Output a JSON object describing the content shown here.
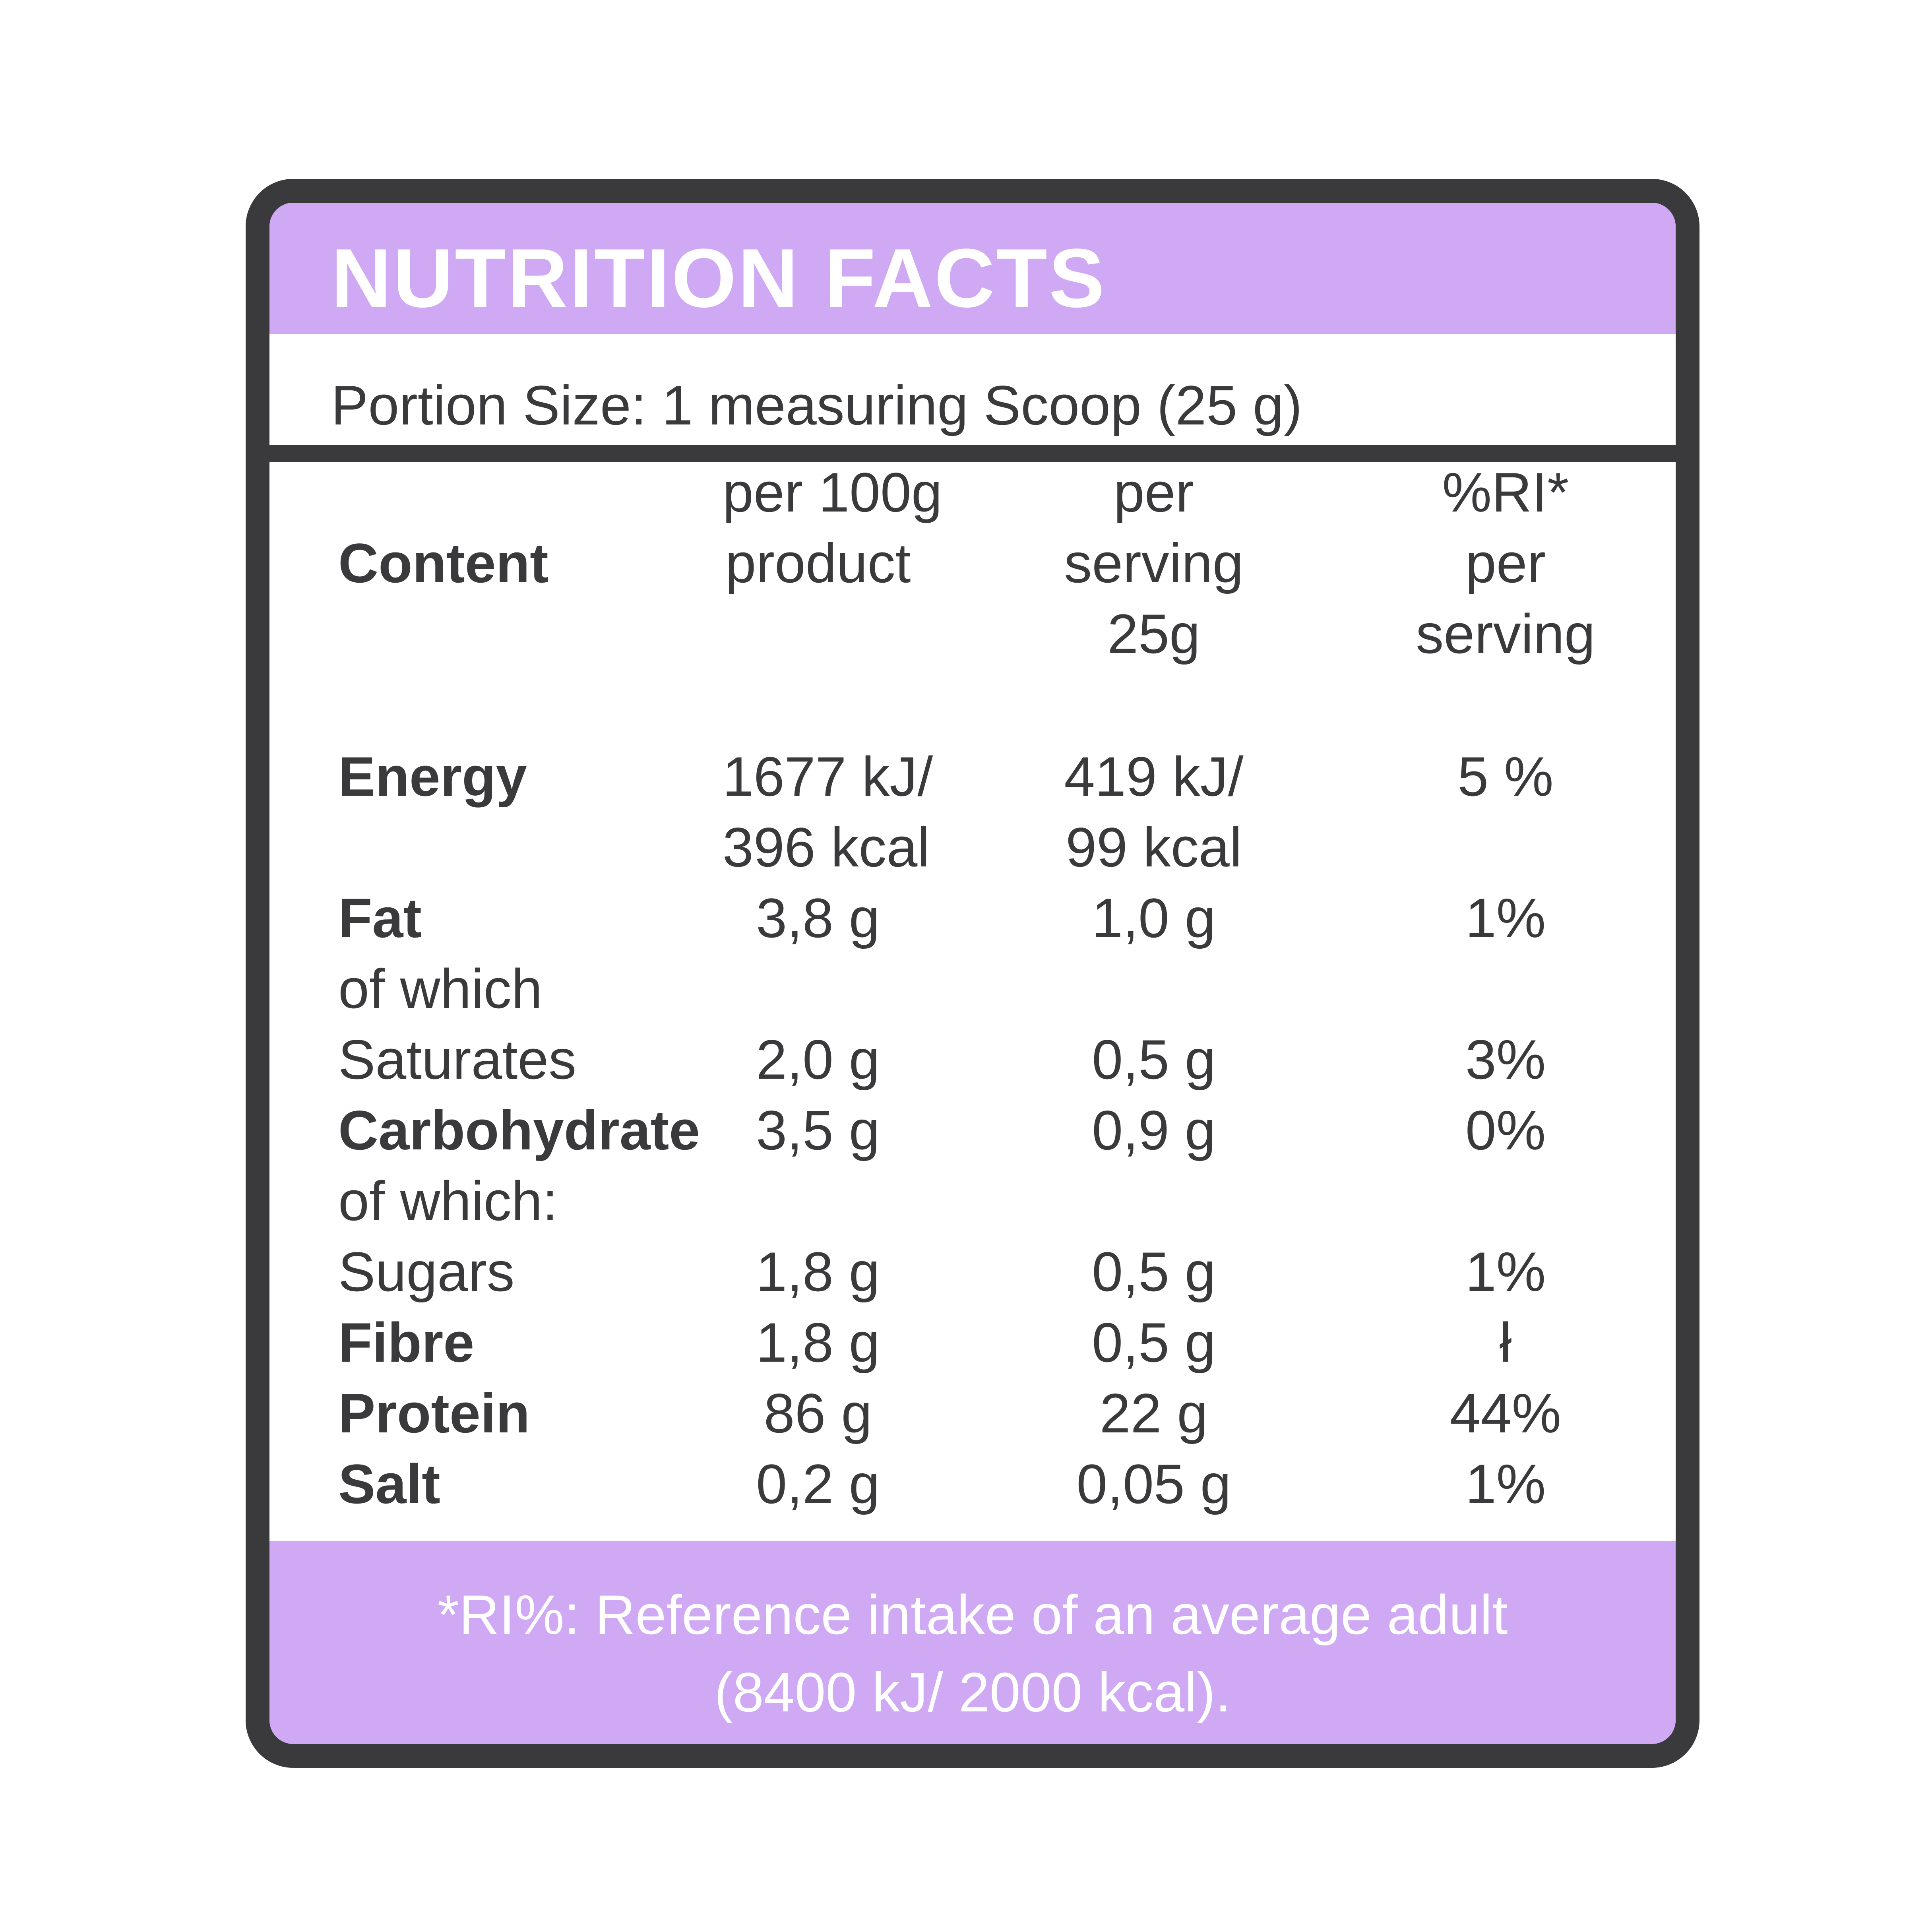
{
  "title": "NUTRITION FACTS",
  "portion_size": "Portion Size: 1 measuring Scoop (25 g)",
  "columns": {
    "content": "Content",
    "per100_line1": "per 100g",
    "per100_line2": "product",
    "serving_line1": "per",
    "serving_line2": "serving",
    "serving_line3": "25g",
    "ri_line1": "%RI*",
    "ri_line2": "per",
    "ri_line3": "serving"
  },
  "rows": {
    "energy": {
      "label": "Energy",
      "per100_1": "1677 kJ/",
      "per100_2": "396 kcal",
      "serving_1": "419 kJ/",
      "serving_2": "99 kcal",
      "ri": "5 %"
    },
    "fat": {
      "label": "Fat",
      "per100": "3,8 g",
      "serving": "1,0 g",
      "ri": "1%"
    },
    "fat_sub": {
      "label1": "of which",
      "label2": "Saturates",
      "per100": "2,0 g",
      "serving": "0,5 g",
      "ri": "3%"
    },
    "carbohydrate": {
      "label": "Carbohydrate",
      "per100": "3,5 g",
      "serving": "0,9 g",
      "ri": "0%"
    },
    "carb_sub": {
      "label1": "of which:",
      "label2": "Sugars",
      "per100": "1,8 g",
      "serving": "0,5 g",
      "ri": "1%"
    },
    "fibre": {
      "label": "Fibre",
      "per100": "1,8 g",
      "serving": "0,5 g",
      "ri": "ł"
    },
    "protein": {
      "label": "Protein",
      "per100": "86 g",
      "serving": "22 g",
      "ri": "44%"
    },
    "salt": {
      "label": "Salt",
      "per100": "0,2 g",
      "serving": "0,05 g",
      "ri": "1%"
    }
  },
  "footer": {
    "line1": "*RI%: Reference intake of an average adult",
    "line2": "(8400 kJ/ 2000 kcal)."
  },
  "colors": {
    "accent": "#cfa9f3",
    "border": "#3a3a3c",
    "text": "#3a3a3c"
  }
}
